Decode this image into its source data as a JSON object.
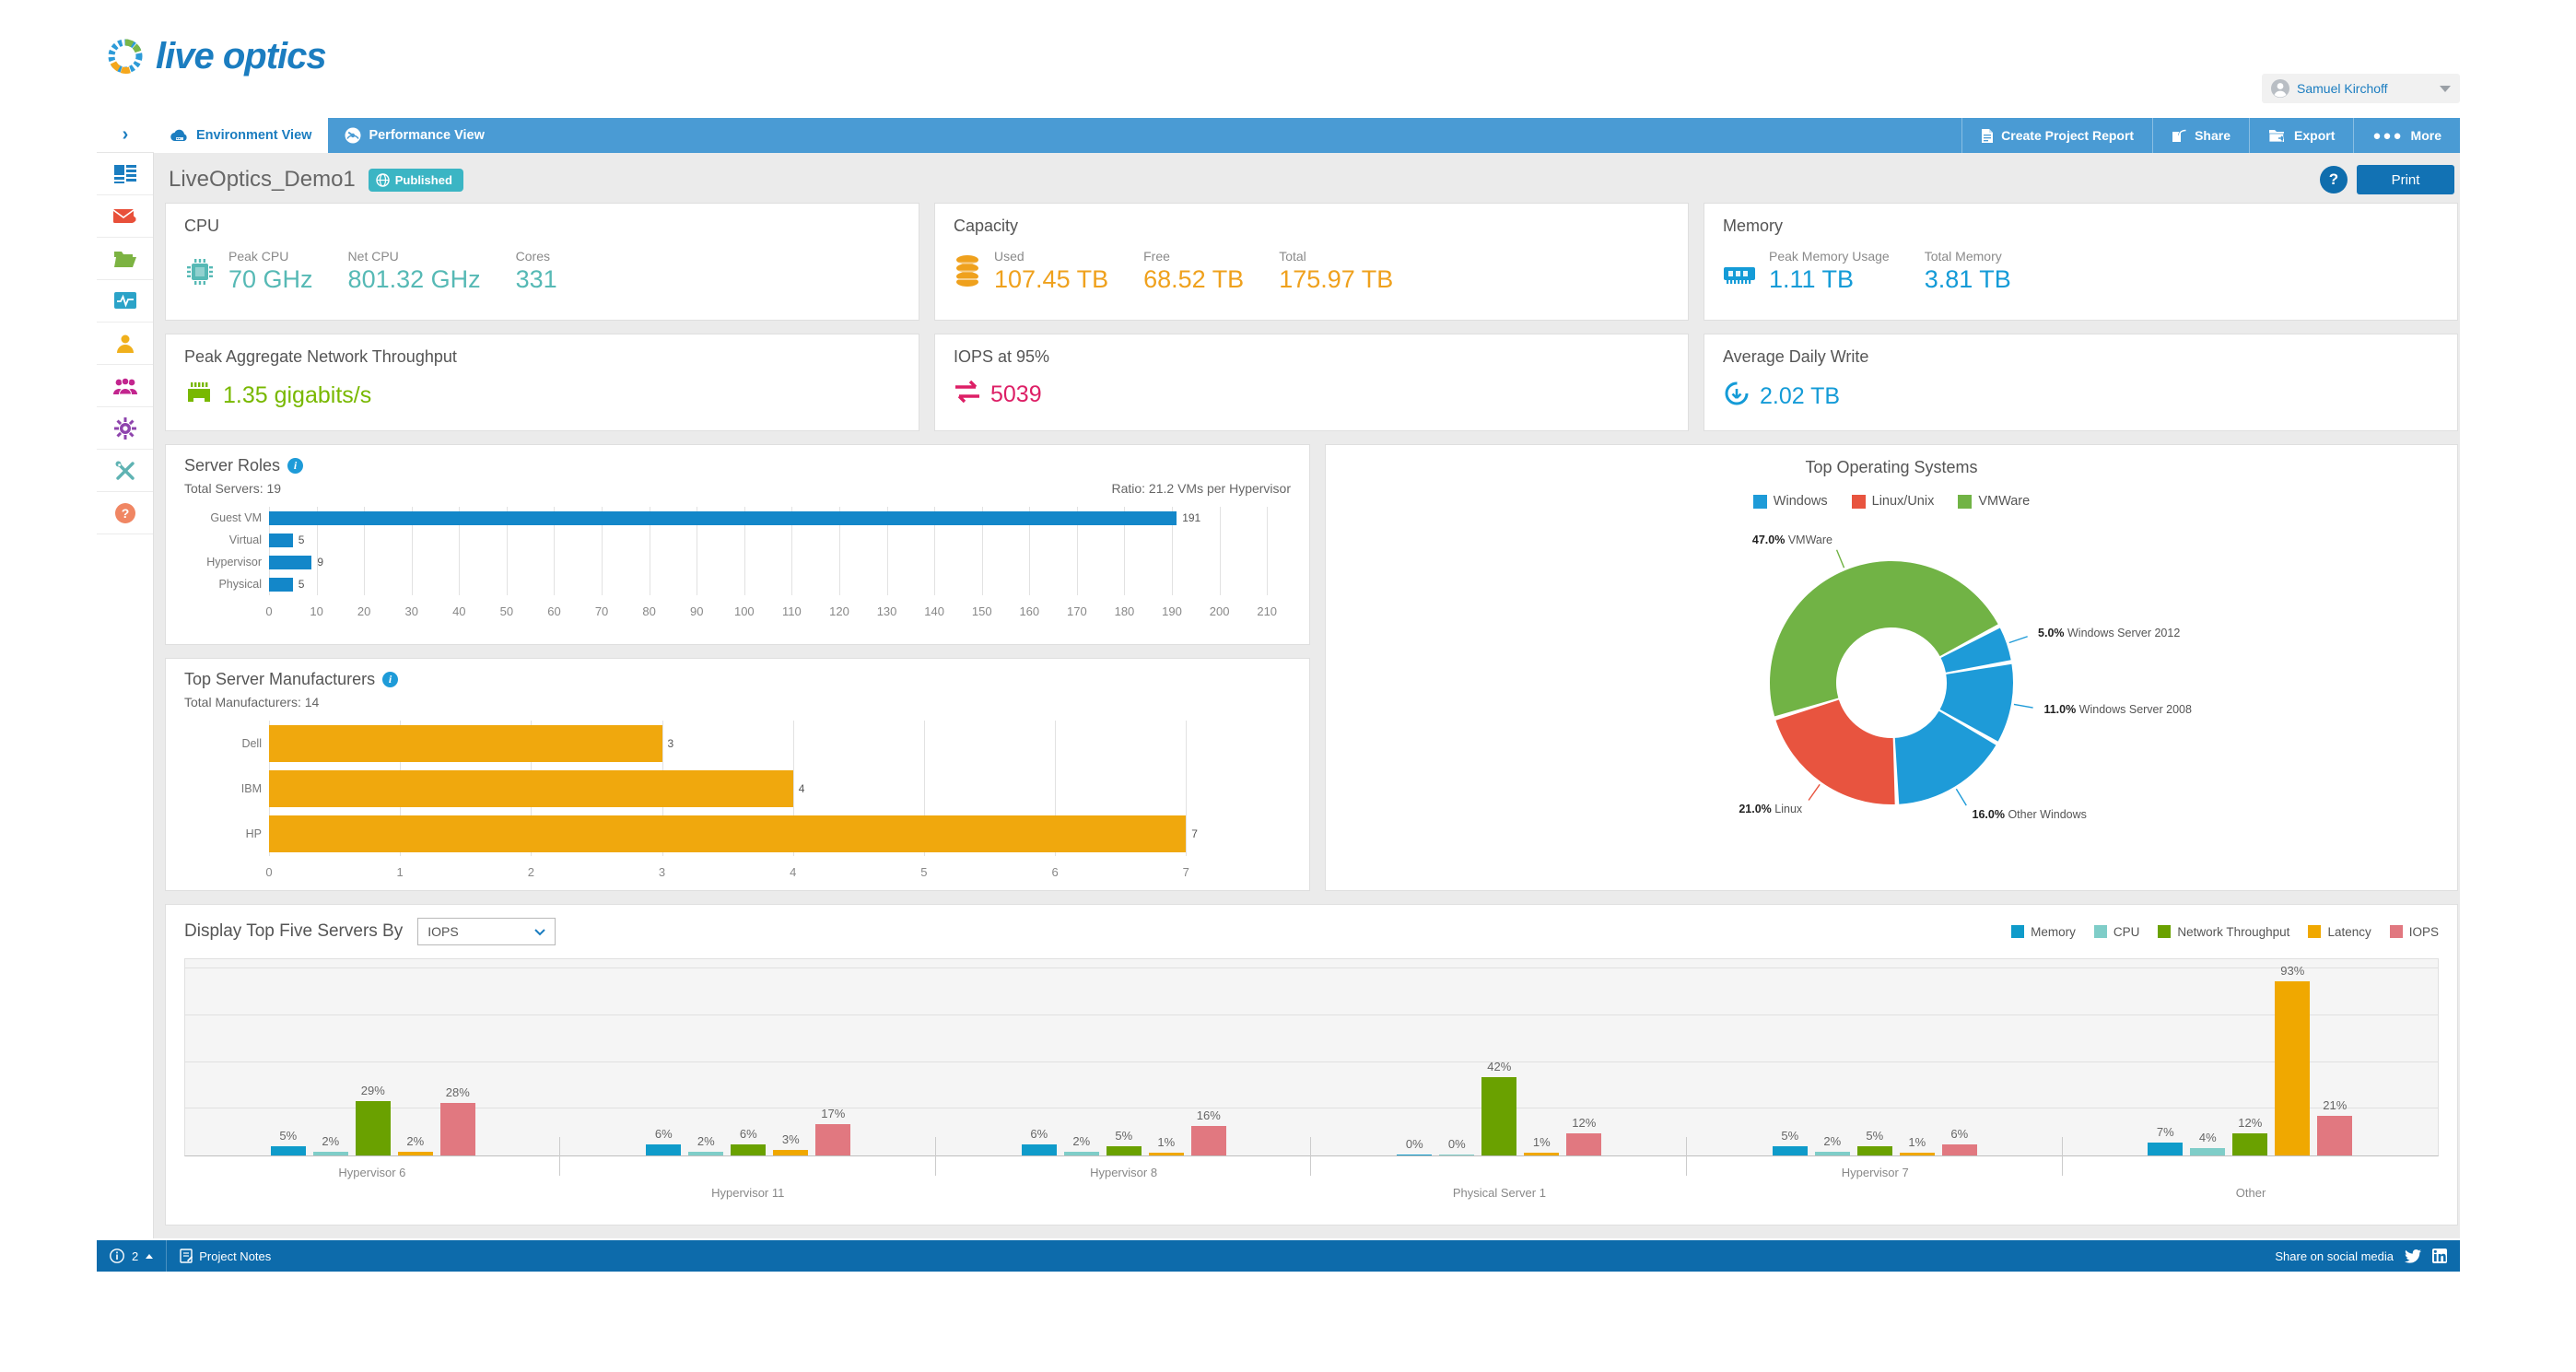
{
  "header": {
    "logo_text": "live optics",
    "user_name": "Samuel Kirchoff"
  },
  "navbar": {
    "tabs": [
      {
        "label": "Environment View"
      },
      {
        "label": "Performance View"
      }
    ],
    "actions": [
      {
        "label": "Create Project Report"
      },
      {
        "label": "Share"
      },
      {
        "label": "Export"
      },
      {
        "label": "More"
      }
    ]
  },
  "title_bar": {
    "project_name": "LiveOptics_Demo1",
    "badge": "Published",
    "print_label": "Print",
    "help_label": "?"
  },
  "cards": {
    "cpu": {
      "title": "CPU",
      "color": "#56b9b5",
      "metrics": [
        {
          "label": "Peak CPU",
          "value": "70 GHz"
        },
        {
          "label": "Net CPU",
          "value": "801.32 GHz"
        },
        {
          "label": "Cores",
          "value": "331"
        }
      ]
    },
    "capacity": {
      "title": "Capacity",
      "color": "#efa11d",
      "metrics": [
        {
          "label": "Used",
          "value": "107.45 TB"
        },
        {
          "label": "Free",
          "value": "68.52 TB"
        },
        {
          "label": "Total",
          "value": "175.97 TB"
        }
      ]
    },
    "memory": {
      "title": "Memory",
      "color": "#149bd7",
      "metrics": [
        {
          "label": "Peak Memory Usage",
          "value": "1.11 TB"
        },
        {
          "label": "Total Memory",
          "value": "3.81 TB"
        }
      ]
    },
    "network": {
      "title": "Peak Aggregate Network Throughput",
      "value": "1.35 gigabits/s",
      "color": "#78b800"
    },
    "iops": {
      "title": "IOPS at 95%",
      "value": "5039",
      "color": "#dd1f66"
    },
    "write": {
      "title": "Average Daily Write",
      "value": "2.02 TB",
      "color": "#149bd7"
    }
  },
  "chart_data": {
    "server_roles": {
      "type": "bar",
      "orientation": "horizontal",
      "title": "Server Roles",
      "subtitle_left": "Total Servers: 19",
      "subtitle_right": "Ratio: 21.2 VMs per Hypervisor",
      "categories": [
        "Guest VM",
        "Virtual",
        "Hypervisor",
        "Physical"
      ],
      "values": [
        191,
        5,
        9,
        5
      ],
      "color": "#1387c9",
      "x_ticks": [
        0,
        10,
        20,
        30,
        40,
        50,
        60,
        70,
        80,
        90,
        100,
        110,
        120,
        130,
        140,
        150,
        160,
        170,
        180,
        190,
        200,
        210
      ],
      "xlim": [
        0,
        215
      ],
      "grid": true
    },
    "manufacturers": {
      "type": "bar",
      "orientation": "horizontal",
      "title": "Top Server Manufacturers",
      "subtitle_left": "Total Manufacturers: 14",
      "categories": [
        "Dell",
        "IBM",
        "HP"
      ],
      "values": [
        3,
        4,
        7
      ],
      "color": "#f0a80d",
      "x_ticks": [
        0,
        1,
        2,
        3,
        4,
        5,
        6,
        7
      ],
      "xlim": [
        0,
        7.8
      ],
      "grid": true
    },
    "top_os": {
      "type": "pie",
      "title": "Top Operating Systems",
      "legend": [
        {
          "label": "Windows",
          "color": "#1e9bd8"
        },
        {
          "label": "Linux/Unix",
          "color": "#e8543f"
        },
        {
          "label": "VMWare",
          "color": "#71b345"
        }
      ],
      "start_angle": 62.2,
      "slices": [
        {
          "label": "Windows Server 2012",
          "pct": 5.0,
          "color": "#1e9bd8"
        },
        {
          "label": "Windows Server 2008",
          "pct": 11.0,
          "color": "#1e9bd8"
        },
        {
          "label": "Other Windows",
          "pct": 16.0,
          "color": "#1e9bd8"
        },
        {
          "label": "Linux",
          "pct": 21.0,
          "color": "#e8543f"
        },
        {
          "label": "VMWare",
          "pct": 47.0,
          "color": "#71b345"
        }
      ]
    },
    "top_servers": {
      "type": "bar",
      "grouped": true,
      "control_label": "Display Top Five Servers By",
      "dropdown_value": "IOPS",
      "ylim": [
        0,
        105
      ],
      "gridlines": [
        25,
        50,
        75,
        100
      ],
      "series": [
        {
          "name": "Memory",
          "color": "#0f9bca"
        },
        {
          "name": "CPU",
          "color": "#7fcdc8"
        },
        {
          "name": "Network Throughput",
          "color": "#6aa100"
        },
        {
          "name": "Latency",
          "color": "#f0a800"
        },
        {
          "name": "IOPS",
          "color": "#e17880"
        }
      ],
      "groups": [
        {
          "name": "Hypervisor 6",
          "values": [
            5,
            2,
            29,
            2,
            28
          ]
        },
        {
          "name": "Hypervisor 11",
          "values": [
            6,
            2,
            6,
            3,
            17
          ]
        },
        {
          "name": "Hypervisor 8",
          "values": [
            6,
            2,
            5,
            1,
            16
          ]
        },
        {
          "name": "Physical Server 1",
          "values": [
            0,
            0,
            42,
            1,
            12
          ]
        },
        {
          "name": "Hypervisor 7",
          "values": [
            5,
            2,
            5,
            1,
            6
          ]
        },
        {
          "name": "Other",
          "values": [
            7,
            4,
            12,
            93,
            21
          ]
        }
      ],
      "value_suffix": "%"
    }
  },
  "footer": {
    "notification_count": "2",
    "notes_label": "Project Notes",
    "share_label": "Share on social media"
  }
}
